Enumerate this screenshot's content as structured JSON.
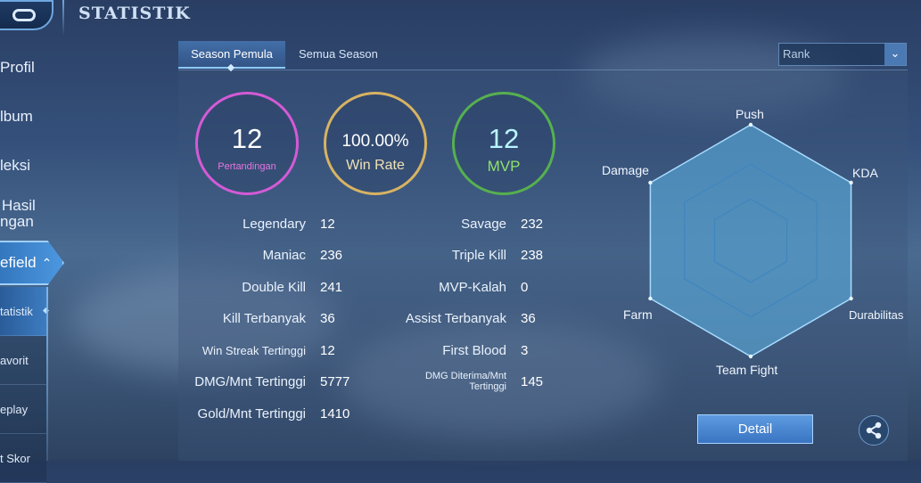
{
  "header": {
    "title": "STATISTIK"
  },
  "sidebar": {
    "items": [
      {
        "label": "Profil"
      },
      {
        "label": "lbum"
      },
      {
        "label": "leksi"
      },
      {
        "label": "Hasil"
      },
      {
        "label": "ngan"
      }
    ],
    "active_label": "efield",
    "sub_items": [
      {
        "label": "tatistik"
      },
      {
        "label": "avorit"
      },
      {
        "label": "eplay"
      },
      {
        "label": "t Skor"
      }
    ]
  },
  "tabs": [
    {
      "label": "Season Pemula"
    },
    {
      "label": "Semua Season"
    }
  ],
  "rank_select": {
    "value": "Rank"
  },
  "circles": {
    "matches": {
      "value": "12",
      "label": "Pertandingan"
    },
    "win_rate": {
      "value": "100.00%",
      "label": "Win Rate"
    },
    "mvp": {
      "value": "12",
      "label": "MVP"
    }
  },
  "stats_left": [
    {
      "label": "Legendary",
      "value": "12"
    },
    {
      "label": "Maniac",
      "value": "236"
    },
    {
      "label": "Double Kill",
      "value": "241"
    },
    {
      "label": "Kill Terbanyak",
      "value": "36"
    },
    {
      "label": "Win Streak Tertinggi",
      "value": "12"
    },
    {
      "label": "DMG/Mnt Tertinggi",
      "value": "5777"
    },
    {
      "label": "Gold/Mnt Tertinggi",
      "value": "1410"
    }
  ],
  "stats_right": [
    {
      "label": "Savage",
      "value": "232"
    },
    {
      "label": "Triple Kill",
      "value": "238"
    },
    {
      "label": "MVP-Kalah",
      "value": "0"
    },
    {
      "label": "Assist Terbanyak",
      "value": "36"
    },
    {
      "label": "First Blood",
      "value": "3"
    },
    {
      "label": "DMG Diterima/Mnt Tertinggi",
      "value": "145"
    }
  ],
  "radar": {
    "axes": [
      "Push",
      "KDA",
      "Durabilitas",
      "Team Fight",
      "Farm",
      "Damage"
    ],
    "fill_color": "#5fb6e8"
  },
  "actions": {
    "detail_label": "Detail"
  }
}
